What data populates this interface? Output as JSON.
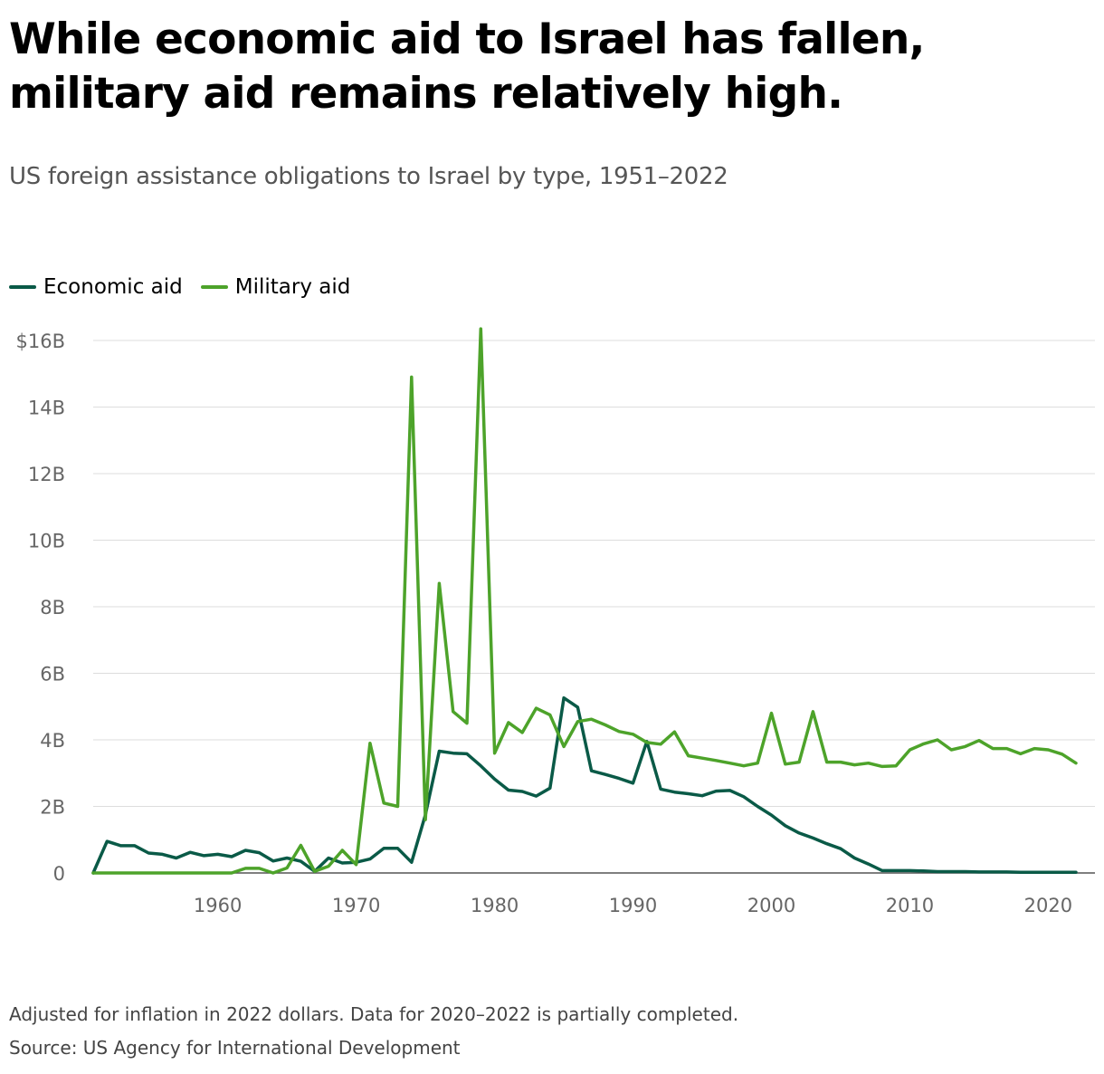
{
  "chart_data": {
    "type": "line",
    "title": "While economic aid to Israel has fallen, military aid remains relatively high.",
    "subtitle": "US foreign assistance obligations to Israel by type, 1951–2022",
    "xlabel": "",
    "ylabel": "",
    "xlim": [
      1951,
      2022
    ],
    "ylim": [
      0,
      16
    ],
    "y_unit": "billions of 2022 US dollars",
    "y_ticks": [
      {
        "value": 0,
        "label": "0"
      },
      {
        "value": 2,
        "label": "2B"
      },
      {
        "value": 4,
        "label": "4B"
      },
      {
        "value": 6,
        "label": "6B"
      },
      {
        "value": 8,
        "label": "8B"
      },
      {
        "value": 10,
        "label": "10B"
      },
      {
        "value": 12,
        "label": "12B"
      },
      {
        "value": 14,
        "label": "14B"
      },
      {
        "value": 16,
        "label": "$16B"
      }
    ],
    "x_ticks": [
      1960,
      1970,
      1980,
      1990,
      2000,
      2010,
      2020
    ],
    "grid": "horizontal",
    "legend_position": "top-left",
    "x": [
      1951,
      1952,
      1953,
      1954,
      1955,
      1956,
      1957,
      1958,
      1959,
      1960,
      1961,
      1962,
      1963,
      1964,
      1965,
      1966,
      1967,
      1968,
      1969,
      1970,
      1971,
      1972,
      1973,
      1974,
      1975,
      1976,
      1977,
      1978,
      1979,
      1980,
      1981,
      1982,
      1983,
      1984,
      1985,
      1986,
      1987,
      1988,
      1989,
      1990,
      1991,
      1992,
      1993,
      1994,
      1995,
      1996,
      1997,
      1998,
      1999,
      2000,
      2001,
      2002,
      2003,
      2004,
      2005,
      2006,
      2007,
      2008,
      2009,
      2010,
      2011,
      2012,
      2013,
      2014,
      2015,
      2016,
      2017,
      2018,
      2019,
      2020,
      2021,
      2022
    ],
    "series": [
      {
        "name": "Economic aid",
        "color": "#0a5a47",
        "values": [
          0.0,
          0.95,
          0.82,
          0.82,
          0.6,
          0.56,
          0.45,
          0.62,
          0.52,
          0.56,
          0.49,
          0.68,
          0.61,
          0.36,
          0.45,
          0.35,
          0.05,
          0.45,
          0.3,
          0.32,
          0.42,
          0.74,
          0.74,
          0.32,
          1.75,
          3.66,
          3.6,
          3.58,
          3.22,
          2.82,
          2.49,
          2.45,
          2.31,
          2.55,
          5.26,
          4.98,
          3.07,
          2.96,
          2.84,
          2.7,
          3.95,
          2.52,
          2.43,
          2.38,
          2.32,
          2.46,
          2.48,
          2.29,
          2.0,
          1.74,
          1.42,
          1.2,
          1.05,
          0.88,
          0.73,
          0.45,
          0.27,
          0.07,
          0.07,
          0.07,
          0.06,
          0.04,
          0.04,
          0.04,
          0.03,
          0.03,
          0.03,
          0.02,
          0.02,
          0.02,
          0.02,
          0.02
        ]
      },
      {
        "name": "Military aid",
        "color": "#4da32a",
        "values": [
          0.0,
          0.0,
          0.0,
          0.0,
          0.0,
          0.0,
          0.0,
          0.0,
          0.0,
          0.0,
          0.0,
          0.14,
          0.14,
          0.0,
          0.15,
          0.83,
          0.05,
          0.2,
          0.68,
          0.25,
          3.9,
          2.1,
          2.0,
          14.9,
          1.6,
          8.7,
          4.85,
          4.5,
          16.35,
          3.6,
          4.52,
          4.22,
          4.95,
          4.75,
          3.8,
          4.55,
          4.62,
          4.45,
          4.25,
          4.17,
          3.92,
          3.87,
          4.24,
          3.52,
          3.45,
          3.38,
          3.3,
          3.22,
          3.3,
          4.8,
          3.27,
          3.33,
          4.85,
          3.33,
          3.33,
          3.25,
          3.3,
          3.2,
          3.22,
          3.7,
          3.88,
          4.0,
          3.7,
          3.8,
          3.98,
          3.74,
          3.74,
          3.58,
          3.74,
          3.7,
          3.57,
          3.3
        ]
      }
    ]
  },
  "notes": {
    "footnote": "Adjusted for inflation in 2022 dollars. Data for 2020–2022 is partially completed.",
    "source": "Source: US Agency for International Development"
  }
}
